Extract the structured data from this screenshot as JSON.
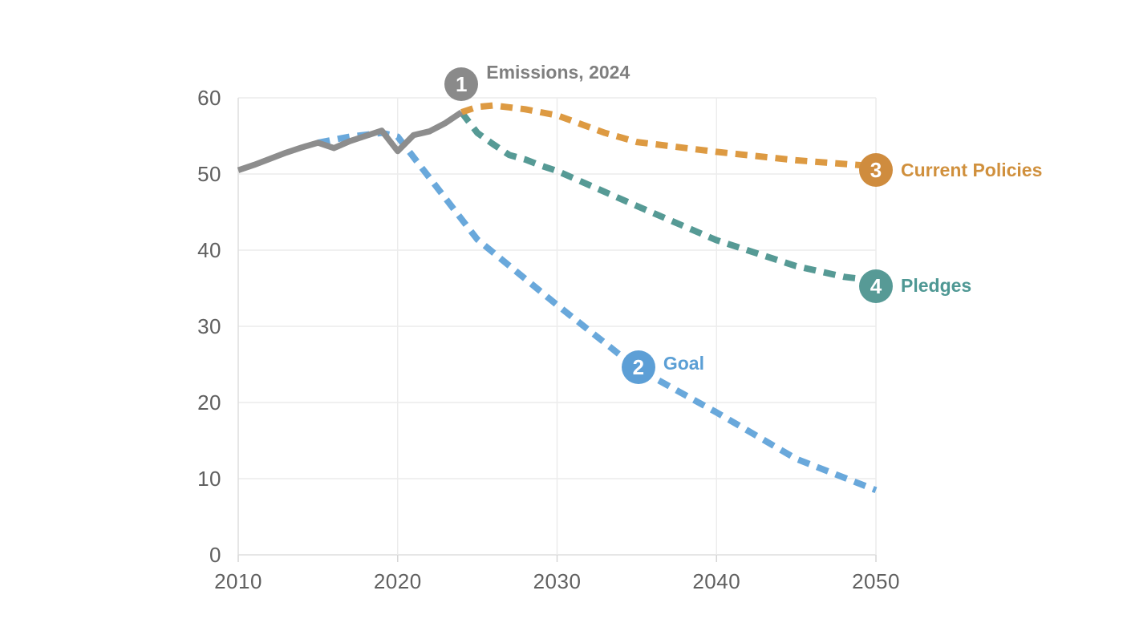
{
  "page": {
    "background": "#ffffff"
  },
  "chart_data": {
    "type": "line",
    "title": "",
    "xlabel": "",
    "ylabel": "",
    "xlim": [
      2010,
      2050
    ],
    "ylim": [
      0,
      60
    ],
    "x_ticks": [
      "2010",
      "2020",
      "2030",
      "2040",
      "2050"
    ],
    "x_tick_values": [
      2010,
      2020,
      2030,
      2040,
      2050
    ],
    "y_ticks": [
      "0",
      "10",
      "20",
      "30",
      "40",
      "50",
      "60"
    ],
    "y_tick_values": [
      0,
      10,
      20,
      30,
      40,
      50,
      60
    ],
    "grid": true,
    "legend_position": "inline-annotations",
    "colors": {
      "grid": "#ececec",
      "axis": "#dddddd",
      "tick_text": "#606060",
      "background": "#ffffff"
    },
    "series": [
      {
        "id": "goal",
        "name": "Goal",
        "style": "dashed",
        "color": "#69a8db",
        "points": [
          [
            2015,
            54.1
          ],
          [
            2017,
            54.9
          ],
          [
            2019,
            55.4
          ],
          [
            2020,
            54.9
          ],
          [
            2025,
            41.4
          ],
          [
            2030,
            32.8
          ],
          [
            2035,
            24.5
          ],
          [
            2040,
            18.7
          ],
          [
            2045,
            12.6
          ],
          [
            2050,
            8.5
          ]
        ]
      },
      {
        "id": "pledges",
        "name": "Pledges",
        "style": "dashed",
        "color": "#569a95",
        "points": [
          [
            2024,
            58.1
          ],
          [
            2025,
            55.4
          ],
          [
            2026,
            53.9
          ],
          [
            2027,
            52.5
          ],
          [
            2028,
            51.9
          ],
          [
            2029,
            51.1
          ],
          [
            2030,
            50.4
          ],
          [
            2035,
            45.8
          ],
          [
            2040,
            41.3
          ],
          [
            2045,
            37.9
          ],
          [
            2048,
            36.5
          ],
          [
            2050,
            36.0
          ]
        ]
      },
      {
        "id": "current-policies",
        "name": "Current Policies",
        "style": "dashed",
        "color": "#dd9a42",
        "points": [
          [
            2024,
            58.1
          ],
          [
            2025,
            58.8
          ],
          [
            2026,
            59.0
          ],
          [
            2028,
            58.5
          ],
          [
            2030,
            57.7
          ],
          [
            2033,
            55.4
          ],
          [
            2035,
            54.2
          ],
          [
            2040,
            52.9
          ],
          [
            2045,
            51.8
          ],
          [
            2050,
            51.0
          ]
        ]
      },
      {
        "id": "emissions-history",
        "name": "Emissions, 2024",
        "style": "solid",
        "color": "#8d8d8d",
        "points": [
          [
            2010,
            50.5
          ],
          [
            2011,
            51.2
          ],
          [
            2012,
            52.0
          ],
          [
            2013,
            52.8
          ],
          [
            2014,
            53.5
          ],
          [
            2015,
            54.1
          ],
          [
            2016,
            53.4
          ],
          [
            2017,
            54.3
          ],
          [
            2018,
            55.0
          ],
          [
            2019,
            55.7
          ],
          [
            2020,
            53.0
          ],
          [
            2021,
            55.1
          ],
          [
            2022,
            55.6
          ],
          [
            2023,
            56.7
          ],
          [
            2024,
            58.1
          ]
        ]
      }
    ],
    "annotations": [
      {
        "number": "1",
        "label": "Emissions, 2024",
        "color": "#8a8a8a",
        "text_color": "#7f7f7f",
        "anchor_year": 2024,
        "anchor_value": 61.8
      },
      {
        "number": "2",
        "label": "Goal",
        "color": "#5d9fd6",
        "text_color": "#5b9fd5",
        "anchor_year": 2035.1,
        "anchor_value": 24.6
      },
      {
        "number": "3",
        "label": "Current Policies",
        "color": "#cf8c3e",
        "text_color": "#d0903d",
        "anchor_year": 2050,
        "anchor_value": 50.5
      },
      {
        "number": "4",
        "label": "Pledges",
        "color": "#579a96",
        "text_color": "#4f9894",
        "anchor_year": 2050,
        "anchor_value": 35.3
      }
    ]
  }
}
